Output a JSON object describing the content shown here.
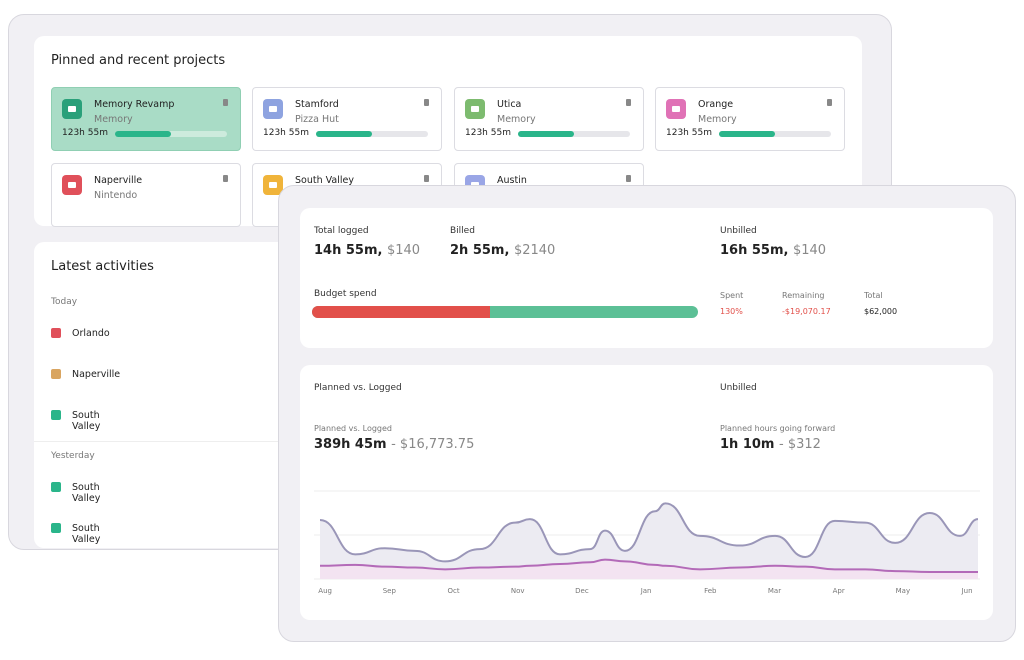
{
  "projects": {
    "title": "Pinned and recent projects",
    "items": [
      {
        "name": "Memory Revamp",
        "client": "Memory",
        "time": "123h 55m",
        "color": "#2aa07a",
        "selected": true
      },
      {
        "name": "Stamford",
        "client": "Pizza Hut",
        "time": "123h 55m",
        "color": "#8ea3e0"
      },
      {
        "name": "Utica",
        "client": "Memory",
        "time": "123h 55m",
        "color": "#7dbb6f"
      },
      {
        "name": "Orange",
        "client": "Memory",
        "time": "123h 55m",
        "color": "#e072b6"
      },
      {
        "name": "Naperville",
        "client": "Nintendo",
        "color": "#e0505a"
      },
      {
        "name": "South Valley",
        "color": "#f0b43a"
      },
      {
        "name": "Austin",
        "color": "#9aa6e6"
      }
    ]
  },
  "activities": {
    "title": "Latest activities",
    "groups": [
      {
        "label": "Today",
        "items": [
          {
            "name": "Orlando",
            "color": "#e0505a"
          },
          {
            "name": "Naperville",
            "color": "#d9a560"
          },
          {
            "name": "South Valley",
            "color": "#2ab58a"
          }
        ]
      },
      {
        "label": "Yesterday",
        "items": [
          {
            "name": "South Valley",
            "color": "#2ab58a"
          },
          {
            "name": "South Valley",
            "color": "#2ab58a"
          }
        ]
      }
    ]
  },
  "summary": {
    "total_logged": {
      "label": "Total logged",
      "time": "14h 55m,",
      "amount": "$140"
    },
    "billed": {
      "label": "Billed",
      "time": "2h 55m,",
      "amount": "$2140"
    },
    "unbilled": {
      "label": "Unbilled",
      "time": "16h 55m,",
      "amount": "$140"
    },
    "budget": {
      "label": "Budget spend",
      "spent_label": "Spent",
      "spent": "130%",
      "remaining_label": "Remaining",
      "remaining": "-$19,070.17",
      "total_label": "Total",
      "total": "$62,000"
    }
  },
  "planned": {
    "title": "Planned vs. Logged",
    "unbilled_title": "Unbilled",
    "pl_label": "Planned vs. Logged",
    "pl_time": "389h 45m",
    "pl_amount": "- $16,773.75",
    "fw_label": "Planned hours going forward",
    "fw_time": "1h 10m",
    "fw_amount": "- $312"
  },
  "chart_data": {
    "type": "line",
    "x": [
      -0.08,
      0.47,
      0.93,
      1.4,
      1.87,
      2.41,
      2.96,
      3.19,
      3.66,
      4.13,
      4.36,
      4.67,
      5.14,
      5.3,
      5.84,
      6.46,
      7.01,
      7.48,
      7.94,
      8.41,
      8.88,
      9.42,
      9.89,
      10.17
    ],
    "series": [
      {
        "color": "#9a96b8",
        "fill": "#ecebf2",
        "values": [
          67,
          28,
          35,
          32,
          20,
          34,
          64,
          68,
          28,
          34,
          55,
          32,
          77,
          86,
          49,
          38,
          49,
          25,
          66,
          64,
          41,
          75,
          49,
          68
        ]
      },
      {
        "color": "#b36ab8",
        "fill": "#f3e3f1",
        "values": [
          15,
          16,
          14,
          13,
          11,
          13,
          14,
          15,
          17,
          19,
          22,
          20,
          16,
          15,
          11,
          13,
          15,
          14,
          11,
          11,
          9,
          8,
          8,
          8
        ]
      }
    ],
    "xlim": [
      -0.08,
      10.17
    ],
    "ylim": [
      0,
      100
    ],
    "xticks": [
      {
        "value": 0,
        "label": "Aug"
      },
      {
        "value": 1,
        "label": "Sep"
      },
      {
        "value": 2,
        "label": "Oct"
      },
      {
        "value": 3,
        "label": "Nov"
      },
      {
        "value": 4,
        "label": "Dec"
      },
      {
        "value": 5,
        "label": "Jan"
      },
      {
        "value": 6,
        "label": "Feb"
      },
      {
        "value": 7,
        "label": "Mar"
      },
      {
        "value": 8,
        "label": "Apr"
      },
      {
        "value": 9,
        "label": "May"
      },
      {
        "value": 10,
        "label": "Jun"
      }
    ]
  }
}
